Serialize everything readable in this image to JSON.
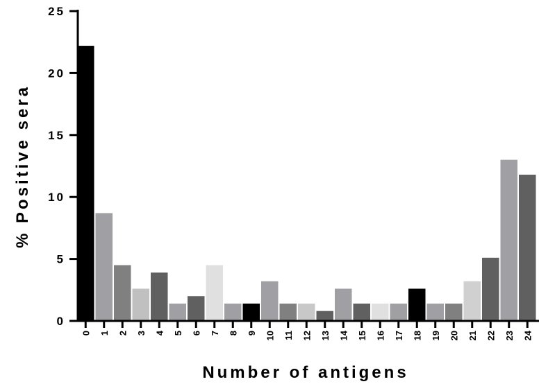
{
  "chart_data": {
    "type": "bar",
    "title": "",
    "xlabel": "Number of antigens",
    "ylabel": "% Positive sera",
    "ylim": [
      0,
      25
    ],
    "yticks": [
      0,
      5,
      10,
      15,
      20,
      25
    ],
    "grid": false,
    "categories": [
      "0",
      "1",
      "2",
      "3",
      "4",
      "5",
      "6",
      "7",
      "8",
      "9",
      "10",
      "11",
      "12",
      "13",
      "14",
      "15",
      "16",
      "17",
      "18",
      "19",
      "20",
      "21",
      "22",
      "23",
      "24"
    ],
    "values": [
      22.2,
      8.7,
      4.5,
      2.6,
      3.9,
      1.4,
      2.0,
      4.5,
      1.4,
      1.4,
      3.2,
      1.4,
      1.4,
      0.8,
      2.6,
      1.4,
      1.4,
      1.4,
      2.6,
      1.4,
      1.4,
      3.2,
      5.1,
      13.0,
      11.8
    ],
    "colors": [
      "#000000",
      "#a0a0a4",
      "#808080",
      "#c0c0c0",
      "#606060",
      "#a0a0a4",
      "#606060",
      "#e0e0e0",
      "#a0a0a4",
      "#000000",
      "#a0a0a4",
      "#808080",
      "#c8c8c8",
      "#606060",
      "#a0a0a4",
      "#606060",
      "#e0e0e0",
      "#a0a0a4",
      "#000000",
      "#a0a0a4",
      "#808080",
      "#d0d0d0",
      "#606060",
      "#a0a0a4",
      "#606060"
    ]
  }
}
